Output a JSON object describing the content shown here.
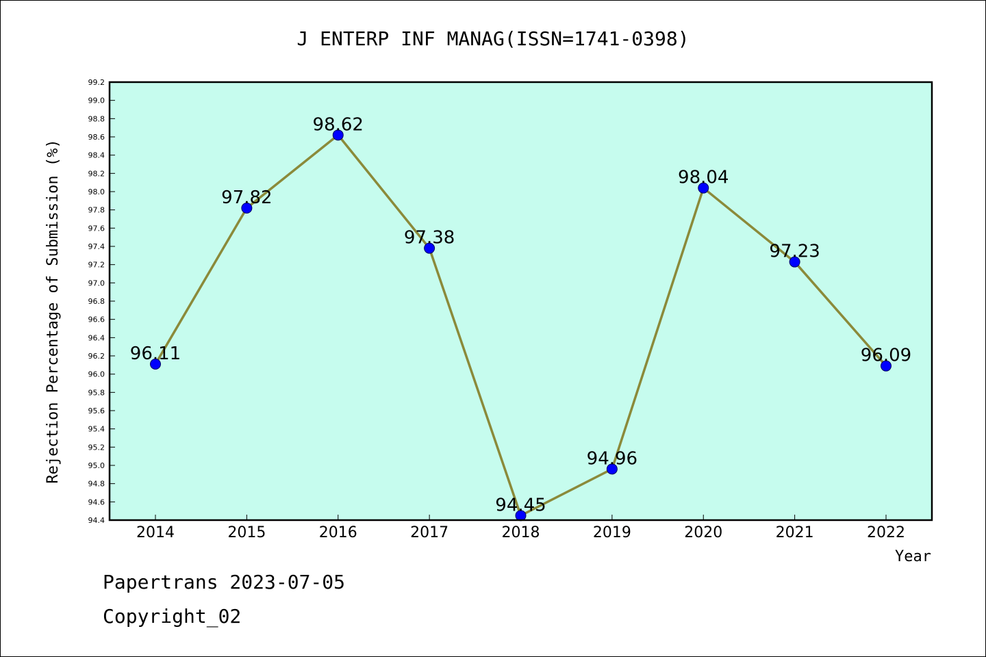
{
  "chart_data": {
    "type": "line",
    "title": "J ENTERP INF MANAG(ISSN=1741-0398)",
    "xlabel": "Year",
    "ylabel": "Rejection Percentage of Submission (%)",
    "categories": [
      "2014",
      "2015",
      "2016",
      "2017",
      "2018",
      "2019",
      "2020",
      "2021",
      "2022"
    ],
    "values": [
      96.11,
      97.82,
      98.62,
      97.38,
      94.45,
      94.96,
      98.04,
      97.23,
      96.09
    ],
    "value_labels": [
      "96.11",
      "97.82",
      "98.62",
      "97.38",
      "94.45",
      "94.96",
      "98.04",
      "97.23",
      "96.09"
    ],
    "ylim": [
      94.4,
      99.2
    ],
    "yticks": [
      "94.4",
      "94.6",
      "94.8",
      "95.0",
      "95.2",
      "95.4",
      "95.6",
      "95.8",
      "96.0",
      "96.2",
      "96.4",
      "96.6",
      "96.8",
      "97.0",
      "97.2",
      "97.4",
      "97.6",
      "97.8",
      "98.0",
      "98.2",
      "98.4",
      "98.6",
      "98.8",
      "99.0",
      "99.2"
    ],
    "grid": false,
    "colors": {
      "plot_background": "#c6fcee",
      "line": "#8b8a3a",
      "marker": "#0000ff"
    }
  },
  "footer": {
    "line1": "Papertrans 2023-07-05",
    "line2": "Copyright_02"
  }
}
